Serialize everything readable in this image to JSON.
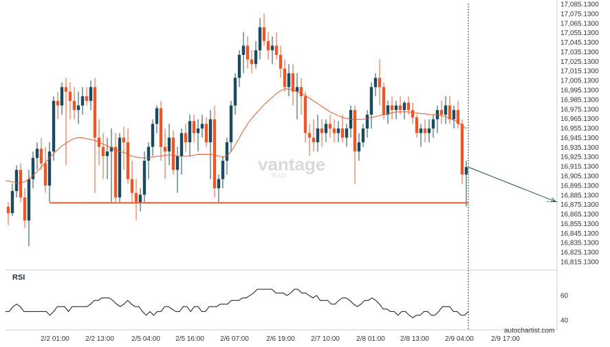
{
  "chart_data": {
    "type": "candlestick",
    "ylim": [
      16805.13,
      17085.13
    ],
    "y_ticks": [
      "17,085.1300",
      "17,075.1300",
      "17,065.1300",
      "17,055.1300",
      "17,045.1300",
      "17,035.1300",
      "17,025.1300",
      "17,015.1300",
      "17,005.1300",
      "16,995.1300",
      "16,985.1300",
      "16,975.1300",
      "16,965.1300",
      "16,955.1300",
      "16,945.1300",
      "16,935.1300",
      "16,925.1300",
      "16,915.1300",
      "16,905.1300",
      "16,895.1300",
      "16,885.1300",
      "16,875.1300",
      "16,865.1300",
      "16,855.1300",
      "16,845.1300",
      "16,835.1300",
      "16,825.1300",
      "16,815.1300"
    ],
    "x_ticks": [
      "2/2 01:00",
      "2/2 13:00",
      "2/5 04:00",
      "2/5 16:00",
      "2/6 07:00",
      "2/6 19:00",
      "2/7 10:00",
      "2/8 01:00",
      "2/8 13:00",
      "2/9 04:00",
      "2/9 17:00"
    ],
    "support_level": 16869.2,
    "support_start_index": 10,
    "forecast_end_value": 16870.5,
    "candles": [
      [
        16865,
        16870,
        16845,
        16858
      ],
      [
        16858,
        16890,
        16855,
        16882
      ],
      [
        16882,
        16910,
        16875,
        16905
      ],
      [
        16905,
        16912,
        16870,
        16875
      ],
      [
        16875,
        16885,
        16842,
        16850
      ],
      [
        16850,
        16905,
        16822,
        16895
      ],
      [
        16895,
        16925,
        16885,
        16918
      ],
      [
        16918,
        16935,
        16905,
        16928
      ],
      [
        16928,
        16940,
        16905,
        16912
      ],
      [
        16912,
        16930,
        16880,
        16888
      ],
      [
        16888,
        16935,
        16870,
        16925
      ],
      [
        16925,
        16985,
        16915,
        16980
      ],
      [
        16980,
        16990,
        16960,
        16975
      ],
      [
        16975,
        17000,
        16965,
        16995
      ],
      [
        16995,
        17005,
        16910,
        16990
      ],
      [
        16990,
        17000,
        16960,
        16980
      ],
      [
        16980,
        16995,
        16960,
        16970
      ],
      [
        16970,
        16990,
        16955,
        16975
      ],
      [
        16975,
        16995,
        16965,
        16985
      ],
      [
        16985,
        16995,
        16975,
        16980
      ],
      [
        16980,
        17002,
        16970,
        16995
      ],
      [
        16995,
        17005,
        16880,
        16940
      ],
      [
        16940,
        16960,
        16910,
        16930
      ],
      [
        16930,
        16945,
        16895,
        16920
      ],
      [
        16920,
        16940,
        16895,
        16925
      ],
      [
        16925,
        16950,
        16870,
        16930
      ],
      [
        16930,
        16945,
        16870,
        16875
      ],
      [
        16875,
        16945,
        16870,
        16940
      ],
      [
        16940,
        16952,
        16905,
        16935
      ],
      [
        16935,
        16950,
        16890,
        16895
      ],
      [
        16895,
        16915,
        16868,
        16880
      ],
      [
        16880,
        16895,
        16850,
        16870
      ],
      [
        16870,
        16885,
        16860,
        16878
      ],
      [
        16878,
        16925,
        16870,
        16915
      ],
      [
        16915,
        16935,
        16895,
        16930
      ],
      [
        16930,
        16960,
        16920,
        16955
      ],
      [
        16955,
        16975,
        16945,
        16972
      ],
      [
        16972,
        16980,
        16915,
        16930
      ],
      [
        16930,
        16950,
        16895,
        16925
      ],
      [
        16925,
        16955,
        16910,
        16940
      ],
      [
        16940,
        16948,
        16900,
        16905
      ],
      [
        16905,
        16930,
        16880,
        16920
      ],
      [
        16920,
        16950,
        16900,
        16945
      ],
      [
        16945,
        16955,
        16925,
        16935
      ],
      [
        16935,
        16965,
        16920,
        16958
      ],
      [
        16958,
        16965,
        16935,
        16945
      ],
      [
        16945,
        16960,
        16925,
        16950
      ],
      [
        16950,
        16965,
        16940,
        16955
      ],
      [
        16955,
        16962,
        16930,
        16935
      ],
      [
        16935,
        16970,
        16895,
        16960
      ],
      [
        16960,
        16975,
        16875,
        16885
      ],
      [
        16885,
        16900,
        16870,
        16895
      ],
      [
        16895,
        16920,
        16885,
        16915
      ],
      [
        16915,
        16940,
        16900,
        16935
      ],
      [
        16935,
        16980,
        16925,
        16975
      ],
      [
        16975,
        17010,
        16965,
        17005
      ],
      [
        17005,
        17035,
        16995,
        17030
      ],
      [
        17030,
        17055,
        17010,
        17040
      ],
      [
        17040,
        17050,
        17015,
        17025
      ],
      [
        17025,
        17035,
        17010,
        17020
      ],
      [
        17020,
        17045,
        17015,
        17035
      ],
      [
        17035,
        17070,
        17025,
        17060
      ],
      [
        17060,
        17075,
        17040,
        17045
      ],
      [
        17045,
        17055,
        17025,
        17035
      ],
      [
        17035,
        17050,
        17020,
        17040
      ],
      [
        17040,
        17055,
        17025,
        17030
      ],
      [
        17030,
        17040,
        17005,
        17015
      ],
      [
        17015,
        17025,
        16990,
        16995
      ],
      [
        16995,
        17020,
        16985,
        17010
      ],
      [
        17010,
        17020,
        16975,
        16990
      ],
      [
        16990,
        17010,
        16960,
        16995
      ],
      [
        16995,
        17005,
        16965,
        16985
      ],
      [
        16985,
        16990,
        16935,
        16945
      ],
      [
        16945,
        16955,
        16920,
        16940
      ],
      [
        16940,
        16960,
        16925,
        16935
      ],
      [
        16935,
        16965,
        16925,
        16950
      ],
      [
        16950,
        16960,
        16930,
        16945
      ],
      [
        16945,
        16960,
        16935,
        16955
      ],
      [
        16955,
        16965,
        16940,
        16950
      ],
      [
        16950,
        16960,
        16935,
        16945
      ],
      [
        16945,
        16958,
        16935,
        16950
      ],
      [
        16950,
        16965,
        16935,
        16940
      ],
      [
        16940,
        16955,
        16930,
        16950
      ],
      [
        16950,
        16975,
        16940,
        16970
      ],
      [
        16970,
        16975,
        16890,
        16925
      ],
      [
        16925,
        16945,
        16915,
        16935
      ],
      [
        16935,
        16955,
        16930,
        16950
      ],
      [
        16950,
        16970,
        16940,
        16965
      ],
      [
        16965,
        17000,
        16950,
        16995
      ],
      [
        16995,
        17010,
        16985,
        17005
      ],
      [
        17005,
        17025,
        16975,
        16995
      ],
      [
        16995,
        17000,
        16960,
        16965
      ],
      [
        16965,
        16980,
        16955,
        16975
      ],
      [
        16975,
        16985,
        16960,
        16970
      ],
      [
        16970,
        16980,
        16960,
        16975
      ],
      [
        16975,
        16985,
        16965,
        16970
      ],
      [
        16970,
        16980,
        16960,
        16978
      ],
      [
        16978,
        16985,
        16965,
        16970
      ],
      [
        16970,
        16978,
        16955,
        16962
      ],
      [
        16962,
        16965,
        16940,
        16945
      ],
      [
        16945,
        16955,
        16930,
        16950
      ],
      [
        16950,
        16960,
        16935,
        16945
      ],
      [
        16945,
        16960,
        16935,
        16950
      ],
      [
        16950,
        16965,
        16940,
        16960
      ],
      [
        16960,
        16975,
        16945,
        16970
      ],
      [
        16970,
        16980,
        16955,
        16965
      ],
      [
        16965,
        16985,
        16955,
        16975
      ],
      [
        16975,
        16985,
        16955,
        16960
      ],
      [
        16960,
        16975,
        16950,
        16970
      ],
      [
        16970,
        16980,
        16950,
        16955
      ],
      [
        16955,
        16960,
        16890,
        16900
      ],
      [
        16900,
        16915,
        16865,
        16908
      ]
    ],
    "ma_values": [
      16893,
      16892,
      16891,
      16891,
      16892,
      16895,
      16899,
      16903,
      16908,
      16913,
      16918,
      16923,
      16927,
      16931,
      16934,
      16937,
      16939,
      16940,
      16940,
      16939,
      16938,
      16937,
      16935,
      16933,
      16931,
      16929,
      16927,
      16925,
      16924,
      16922,
      16920,
      16919,
      16918,
      16918,
      16918,
      16919,
      16920,
      16920,
      16921,
      16921,
      16921,
      16920,
      16920,
      16920,
      16920,
      16921,
      16922,
      16922,
      16922,
      16922,
      16921,
      16920,
      16919,
      16920,
      16925,
      16932,
      16940,
      16948,
      16955,
      16961,
      16966,
      16971,
      16976,
      16980,
      16984,
      16988,
      16991,
      16993,
      16993,
      16992,
      16990,
      16988,
      16986,
      16983,
      16980,
      16977,
      16974,
      16971,
      16968,
      16966,
      16964,
      16962,
      16961,
      16960,
      16960,
      16960,
      16960,
      16961,
      16962,
      16963,
      16964,
      16965,
      16966,
      16967,
      16968,
      16968,
      16968,
      16968,
      16967,
      16967,
      16966,
      16966,
      16965,
      16965,
      16965,
      16964,
      16963,
      16961,
      16959,
      16957,
      16953,
      16950
    ],
    "rsi_ticks": [
      60,
      40
    ],
    "rsi_values": [
      47,
      47,
      51,
      53,
      51,
      47,
      47,
      47,
      47,
      47,
      47,
      47,
      44,
      47,
      51,
      51,
      51,
      47,
      51,
      51,
      51,
      51,
      51,
      53,
      56,
      56,
      58,
      58,
      58,
      56,
      53,
      51,
      53,
      56,
      53,
      51,
      51,
      47,
      44,
      47,
      44,
      47,
      47,
      51,
      51,
      49,
      47,
      47,
      51,
      51,
      47,
      51,
      51,
      47,
      47,
      51,
      51,
      51,
      53,
      53,
      53,
      56,
      56,
      56,
      58,
      58,
      60,
      62,
      65,
      65,
      65,
      65,
      65,
      62,
      62,
      62,
      60,
      62,
      65,
      65,
      62,
      62,
      60,
      58,
      60,
      56,
      56,
      56,
      53,
      53,
      56,
      58,
      58,
      56,
      53,
      51,
      53,
      56,
      56,
      58,
      56,
      53,
      49,
      49,
      47,
      47,
      44,
      47,
      47,
      44,
      42,
      44,
      44,
      47,
      47,
      44,
      44,
      47,
      51,
      51,
      51,
      47,
      47,
      44,
      44,
      47
    ]
  },
  "branding": {
    "watermark": "vantage",
    "watermark_sub": "PLUS",
    "rsi_label": "RSI",
    "credit": "autochartist.com"
  },
  "colors": {
    "bull": "#1a4a5e",
    "bear": "#e8582a",
    "ma": "#e8582a",
    "support": "#e8582a",
    "rsi": "#111111",
    "forecast": "#1a4a5e"
  }
}
